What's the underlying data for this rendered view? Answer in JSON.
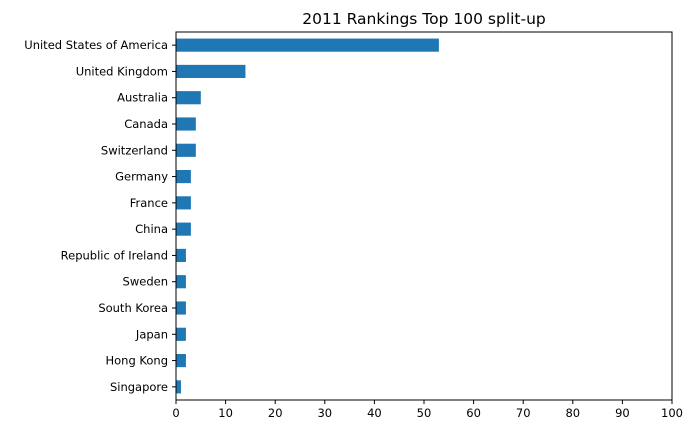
{
  "chart_data": {
    "type": "bar",
    "orientation": "horizontal",
    "title": "2011 Rankings Top 100 split-up",
    "xlabel": "",
    "ylabel": "",
    "categories": [
      "United States of America",
      "United Kingdom",
      "Australia",
      "Canada",
      "Switzerland",
      "Germany",
      "France",
      "China",
      "Republic of Ireland",
      "Sweden",
      "South Korea",
      "Japan",
      "Hong Kong",
      "Singapore"
    ],
    "values": [
      53,
      14,
      5,
      4,
      4,
      3,
      3,
      3,
      2,
      2,
      2,
      2,
      2,
      1
    ],
    "xlim": [
      0,
      100
    ],
    "xticks": [
      0,
      10,
      20,
      30,
      40,
      50,
      60,
      70,
      80,
      90,
      100
    ],
    "bar_color": "#1f77b4",
    "grid": false,
    "legend": "none"
  }
}
